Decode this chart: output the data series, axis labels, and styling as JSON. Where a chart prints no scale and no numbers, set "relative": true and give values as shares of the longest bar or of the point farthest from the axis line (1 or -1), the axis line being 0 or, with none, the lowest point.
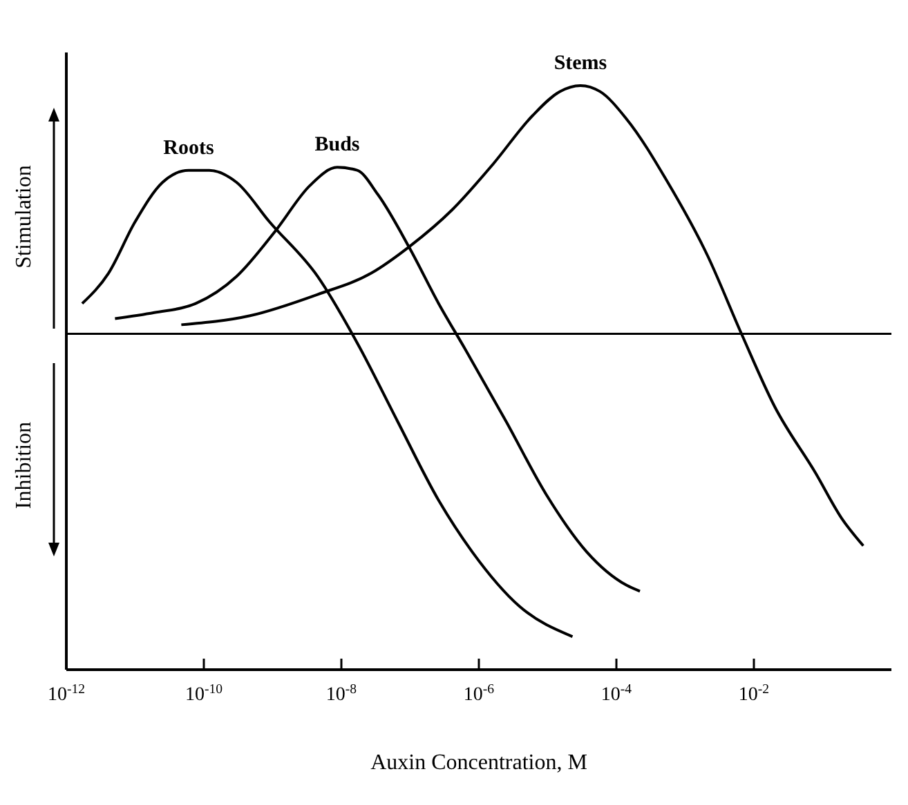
{
  "chart_data": {
    "type": "line",
    "relative": true,
    "log": "x",
    "marker": "none",
    "line_style": "solid",
    "xlabel": "Auxin Concentration, M",
    "annotations": [
      "Stimulation",
      "Inhibition"
    ],
    "xlim": [
      1e-12,
      1
    ],
    "xticks": [
      {
        "value": 1e-12,
        "label": "10$^{-12}$"
      },
      {
        "value": 1e-10,
        "label": "10$^{-10}$"
      },
      {
        "value": 1e-08,
        "label": "10$^{-8}$"
      },
      {
        "value": 1e-06,
        "label": "10$^{-6}$"
      },
      {
        "value": 0.0001,
        "label": "10$^{-4}$"
      },
      {
        "value": 0.01,
        "label": "10$^{-2}$"
      }
    ],
    "series": [
      {
        "name": "Roots",
        "color": "#000000",
        "x": [
          1.7e-12,
          4.1e-12,
          1e-11,
          2.5e-11,
          6e-11,
          1.2e-10,
          3e-10,
          9e-10,
          4.5e-09,
          1.7e-08,
          6.6e-08,
          2.6e-07,
          8e-07,
          3.9e-06,
          2.3e-05
        ],
        "values": [
          0.1,
          0.2,
          0.37,
          0.5,
          0.54,
          0.54,
          0.5,
          0.37,
          0.19,
          -0.03,
          -0.29,
          -0.55,
          -0.72,
          -0.9,
          -1
        ]
      },
      {
        "name": "Buds",
        "color": "#000000",
        "x": [
          5.1e-12,
          1.9e-11,
          7.6e-11,
          3e-10,
          1.1e-09,
          3.5e-09,
          8.7e-09,
          1.7e-08,
          3.4e-08,
          1e-07,
          2.6e-07,
          6.3e-07,
          2.5e-06,
          9.5e-06,
          3.7e-05,
          0.00014,
          0.00022
        ],
        "values": [
          0.05,
          0.07,
          0.1,
          0.19,
          0.34,
          0.49,
          0.55,
          0.54,
          0.46,
          0.28,
          0.1,
          -0.05,
          -0.29,
          -0.53,
          -0.72,
          -0.83,
          -0.85
        ]
      },
      {
        "name": "Stems",
        "color": "#000000",
        "x": [
          4.7e-11,
          4.7e-10,
          4.5e-09,
          2.7e-08,
          1e-07,
          4.1e-07,
          1.6e-06,
          6e-06,
          1.5e-05,
          3e-05,
          5.8e-05,
          0.00014,
          0.00056,
          0.0021,
          0.0066,
          0.02,
          0.079,
          0.19,
          0.39
        ],
        "values": [
          0.03,
          0.06,
          0.13,
          0.2,
          0.29,
          0.41,
          0.56,
          0.72,
          0.8,
          0.82,
          0.8,
          0.71,
          0.5,
          0.26,
          0,
          -0.24,
          -0.46,
          -0.61,
          -0.7
        ]
      }
    ]
  }
}
